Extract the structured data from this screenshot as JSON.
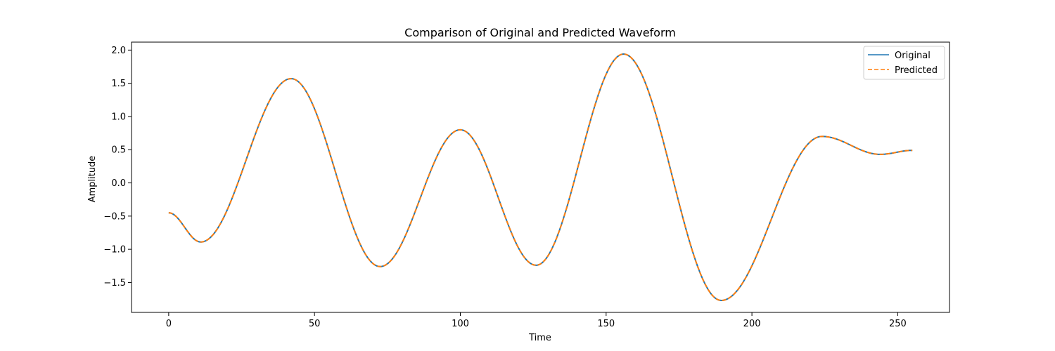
{
  "chart_data": {
    "type": "line",
    "title": "Comparison of Original and Predicted Waveform",
    "xlabel": "Time",
    "ylabel": "Amplitude",
    "xlim": [
      -12.75,
      267.75
    ],
    "ylim": [
      -1.95,
      2.12
    ],
    "xticks": [
      0,
      50,
      100,
      150,
      200,
      250
    ],
    "yticks": [
      -1.5,
      -1.0,
      -0.5,
      0.0,
      0.5,
      1.0,
      1.5,
      2.0
    ],
    "ytick_labels": [
      "−1.5",
      "−1.0",
      "−0.5",
      "0.0",
      "0.5",
      "1.0",
      "1.5",
      "2.0"
    ],
    "grid": false,
    "legend_position": "top-right",
    "keypoints": {
      "x": [
        0,
        11,
        42,
        72.5,
        100,
        126,
        156,
        189.5,
        224,
        244,
        255
      ],
      "y": [
        -0.45,
        -0.89,
        1.57,
        -1.26,
        0.8,
        -1.24,
        1.94,
        -1.77,
        0.7,
        0.43,
        0.49
      ]
    },
    "series": [
      {
        "name": "Original",
        "color": "#1f77b4",
        "style": "solid"
      },
      {
        "name": "Predicted",
        "color": "#ff7f0e",
        "style": "dashed"
      }
    ]
  }
}
